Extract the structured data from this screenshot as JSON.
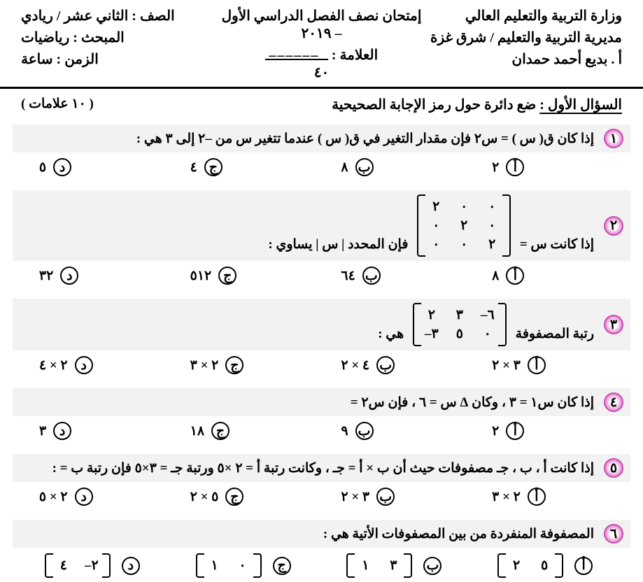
{
  "header": {
    "ministry": "وزارة التربية والتعليم العالي",
    "directorate": "مديرية التربية والتعليم / شرق غزة",
    "teacher": "أ . بديع أحمد حمدان",
    "exam_title": "إمتحان نصف الفصل الدراسي الأول – ٢٠١٩",
    "grade_label": "العلامة :",
    "grade_denom": "٤٠",
    "class_label": "الصف :",
    "class_value": "الثاني عشر / ريادي",
    "subject_label": "المبحث :",
    "subject_value": "رياضيات",
    "time_label": "الزمن :",
    "time_value": "ساعة"
  },
  "question_header": {
    "prefix": "السؤال الأول :",
    "text": "ضع دائرة حول رمز الإجابة الصحيحية",
    "marks": "( ١٠ علامات )"
  },
  "choice_labels": [
    "أ",
    "ب",
    "ج",
    "د"
  ],
  "questions": [
    {
      "num": "١",
      "text": "إذا كان  ق( س ) = س٢  فإن مقدار التغير في ق( س ) عندما تتغير س من –٢ إلى ٣ هي :",
      "choices": [
        "٢",
        "٨",
        "٤",
        "٥"
      ]
    },
    {
      "num": "٢",
      "text_pre": "إذا كانت  س  = ",
      "matrix": [
        [
          "٢",
          "٠",
          "٠"
        ],
        [
          "٠",
          "٢",
          "٠"
        ],
        [
          "٠",
          "٠",
          "٢"
        ]
      ],
      "text_post": " فإن المحدد | س  | يساوي :",
      "choices": [
        "٨",
        "٦٤",
        "٥١٢",
        "٣٢"
      ]
    },
    {
      "num": "٣",
      "text_pre": "رتبة المصفوفة ",
      "matrix": [
        [
          "٢",
          "٣",
          "–٦"
        ],
        [
          "–٣",
          "٥",
          "٠"
        ]
      ],
      "text_post": " هي :",
      "choices": [
        "٣ × ٢",
        "٤ × ٢",
        "٢ × ٣",
        "٢ × ٤"
      ]
    },
    {
      "num": "٤",
      "text": "إذا كان س١ = ٣ ، وكان Δ س = ٦ ، فإن س٢ =",
      "choices": [
        "٢",
        "٩",
        "١٨",
        "٣"
      ]
    },
    {
      "num": "٥",
      "text": "إذا كانت أ ، ب ، جـ مصفوفات حيث أن ب × أ = جـ ، وكانت رتبة أ = ٢ ×٥ ورتبة جـ = ٣×٥ فإن رتبة ب = :",
      "choices": [
        "٢ × ٣",
        "٣ × ٢",
        "٥ × ٢",
        "٢ × ٥"
      ]
    },
    {
      "num": "٦",
      "text": "المصفوفة المنفردة من بين المصفوفات الأتية هي :",
      "matrix_choices": [
        [
          [
            "٢",
            "٥"
          ]
        ],
        [
          [
            "١",
            "٣"
          ]
        ],
        [
          [
            "١",
            "٠"
          ]
        ],
        [
          [
            "٤",
            "–٢"
          ]
        ]
      ]
    }
  ]
}
